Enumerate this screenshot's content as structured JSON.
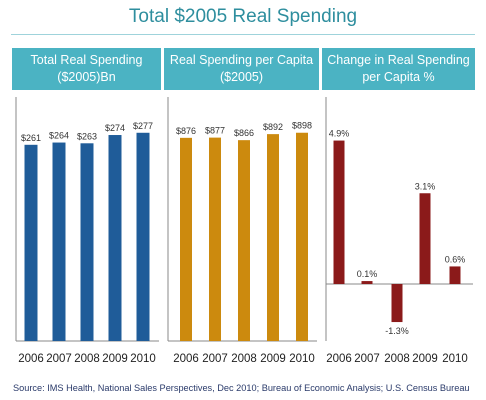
{
  "title": "Total $2005 Real Spending",
  "source": "Source: IMS Health, National Sales Perspectives, Dec 2010; Bureau of Economic Analysis; U.S. Census Bureau",
  "colors": {
    "title": "#2e8e9e",
    "header_bg": "#4bb3c3",
    "blue": "#1f5c99",
    "orange": "#cc8a0e",
    "red": "#8b1a1a",
    "axis": "#555555"
  },
  "chart_data": [
    {
      "type": "bar",
      "title": "Total Real Spending ($2005)Bn",
      "title_lines": [
        "Total Real Spending",
        "($2005)Bn"
      ],
      "categories": [
        "2006",
        "2007",
        "2008",
        "2009",
        "2010"
      ],
      "values": [
        261,
        264,
        263,
        274,
        277
      ],
      "value_labels": [
        "$261",
        "$264",
        "$263",
        "$274",
        "$277"
      ],
      "ylim": [
        0,
        290
      ],
      "color": "#1f5c99"
    },
    {
      "type": "bar",
      "title": "Real Spending per Capita ($2005)",
      "title_lines": [
        "Real Spending per Capita",
        "($2005)"
      ],
      "categories": [
        "2006",
        "2007",
        "2008",
        "2009",
        "2010"
      ],
      "values": [
        876,
        877,
        866,
        892,
        898
      ],
      "value_labels": [
        "$876",
        "$877",
        "$866",
        "$892",
        "$898"
      ],
      "ylim": [
        0,
        940
      ],
      "color": "#cc8a0e"
    },
    {
      "type": "bar",
      "title": "Change in Real Spending per Capita %",
      "title_lines": [
        "Change in Real Spending",
        "per Capita %"
      ],
      "categories": [
        "2006",
        "2007",
        "2008",
        "2009",
        "2010"
      ],
      "values": [
        4.9,
        0.1,
        -1.3,
        3.1,
        0.6
      ],
      "value_labels": [
        "4.9%",
        "0.1%",
        "-1.3%",
        "3.1%",
        "0.6%"
      ],
      "ylim": [
        -2.0,
        5.5
      ],
      "color": "#8b1a1a"
    }
  ]
}
